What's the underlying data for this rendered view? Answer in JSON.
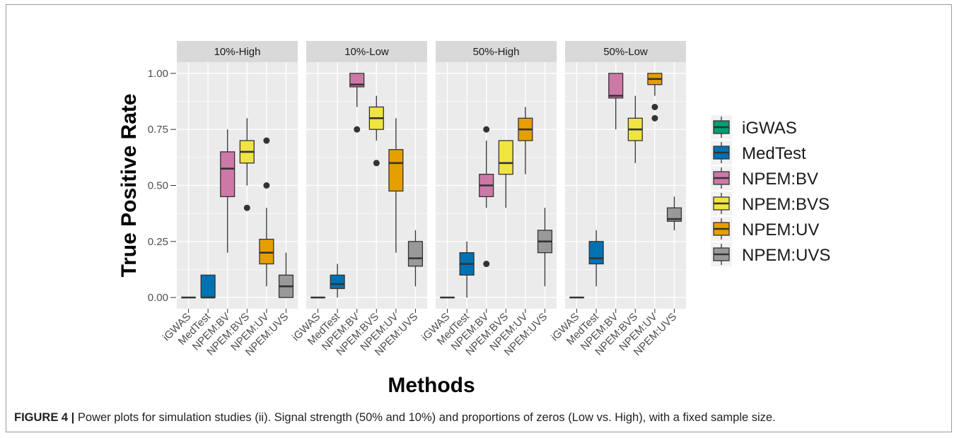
{
  "caption": {
    "label": "FIGURE 4 |",
    "text": "Power plots for simulation studies (ii). Signal strength (50% and 10%) and proportions of zeros (Low vs. High), with a fixed sample size."
  },
  "colors": {
    "panel_bg": "#ebebeb",
    "strip_bg": "#d9d9d9",
    "grid": "#ffffff",
    "box_line": "#333333",
    "iGWAS": "#009E73",
    "MedTest": "#0072B2",
    "NPEM:BV": "#CC79A7",
    "NPEM:BVS": "#F0E442",
    "NPEM:UV": "#E69F00",
    "NPEM:UVS": "#999999"
  },
  "chart_data": {
    "type": "boxplot",
    "xlabel": "Methods",
    "ylabel": "True Positive Rate",
    "ylim": [
      -0.05,
      1.05
    ],
    "yticks": [
      0.0,
      0.25,
      0.5,
      0.75,
      1.0
    ],
    "ytick_labels": [
      "0.00",
      "0.25",
      "0.50",
      "0.75",
      "1.00"
    ],
    "categories": [
      "iGWAS",
      "MedTest",
      "NPEM:BV",
      "NPEM:BVS",
      "NPEM:UV",
      "NPEM:UVS"
    ],
    "legend": {
      "position": "right",
      "entries": [
        "iGWAS",
        "MedTest",
        "NPEM:BV",
        "NPEM:BVS",
        "NPEM:UV",
        "NPEM:UVS"
      ]
    },
    "panels": [
      {
        "title": "10%-High",
        "boxes": [
          {
            "method": "iGWAS",
            "min": 0,
            "q1": 0,
            "median": 0,
            "q3": 0,
            "max": 0,
            "outliers": []
          },
          {
            "method": "MedTest",
            "min": 0,
            "q1": 0,
            "median": 0,
            "q3": 0.1,
            "max": 0.1,
            "outliers": []
          },
          {
            "method": "NPEM:BV",
            "min": 0.2,
            "q1": 0.45,
            "median": 0.575,
            "q3": 0.65,
            "max": 0.75,
            "outliers": []
          },
          {
            "method": "NPEM:BVS",
            "min": 0.5,
            "q1": 0.6,
            "median": 0.65,
            "q3": 0.7,
            "max": 0.8,
            "outliers": [
              0.4
            ]
          },
          {
            "method": "NPEM:UV",
            "min": 0.05,
            "q1": 0.15,
            "median": 0.2,
            "q3": 0.26,
            "max": 0.4,
            "outliers": [
              0.5,
              0.7
            ]
          },
          {
            "method": "NPEM:UVS",
            "min": 0,
            "q1": 0,
            "median": 0.05,
            "q3": 0.1,
            "max": 0.2,
            "outliers": []
          }
        ]
      },
      {
        "title": "10%-Low",
        "boxes": [
          {
            "method": "iGWAS",
            "min": 0,
            "q1": 0,
            "median": 0,
            "q3": 0,
            "max": 0,
            "outliers": []
          },
          {
            "method": "MedTest",
            "min": 0,
            "q1": 0.04,
            "median": 0.06,
            "q3": 0.1,
            "max": 0.15,
            "outliers": []
          },
          {
            "method": "NPEM:BV",
            "min": 0.85,
            "q1": 0.94,
            "median": 0.95,
            "q3": 1.0,
            "max": 1.0,
            "outliers": [
              0.75
            ]
          },
          {
            "method": "NPEM:BVS",
            "min": 0.7,
            "q1": 0.75,
            "median": 0.8,
            "q3": 0.85,
            "max": 0.9,
            "outliers": [
              0.6
            ]
          },
          {
            "method": "NPEM:UV",
            "min": 0.2,
            "q1": 0.475,
            "median": 0.6,
            "q3": 0.66,
            "max": 0.8,
            "outliers": []
          },
          {
            "method": "NPEM:UVS",
            "min": 0.05,
            "q1": 0.14,
            "median": 0.175,
            "q3": 0.25,
            "max": 0.3,
            "outliers": []
          }
        ]
      },
      {
        "title": "50%-High",
        "boxes": [
          {
            "method": "iGWAS",
            "min": 0,
            "q1": 0,
            "median": 0,
            "q3": 0,
            "max": 0,
            "outliers": []
          },
          {
            "method": "MedTest",
            "min": 0,
            "q1": 0.1,
            "median": 0.15,
            "q3": 0.2,
            "max": 0.25,
            "outliers": []
          },
          {
            "method": "NPEM:BV",
            "min": 0.4,
            "q1": 0.45,
            "median": 0.5,
            "q3": 0.55,
            "max": 0.7,
            "outliers": [
              0.15,
              0.75
            ]
          },
          {
            "method": "NPEM:BVS",
            "min": 0.4,
            "q1": 0.55,
            "median": 0.6,
            "q3": 0.7,
            "max": 0.7,
            "outliers": []
          },
          {
            "method": "NPEM:UV",
            "min": 0.55,
            "q1": 0.7,
            "median": 0.75,
            "q3": 0.8,
            "max": 0.85,
            "outliers": []
          },
          {
            "method": "NPEM:UVS",
            "min": 0.05,
            "q1": 0.2,
            "median": 0.25,
            "q3": 0.3,
            "max": 0.4,
            "outliers": []
          }
        ]
      },
      {
        "title": "50%-Low",
        "boxes": [
          {
            "method": "iGWAS",
            "min": 0,
            "q1": 0,
            "median": 0,
            "q3": 0,
            "max": 0,
            "outliers": []
          },
          {
            "method": "MedTest",
            "min": 0.05,
            "q1": 0.15,
            "median": 0.175,
            "q3": 0.25,
            "max": 0.3,
            "outliers": []
          },
          {
            "method": "NPEM:BV",
            "min": 0.75,
            "q1": 0.89,
            "median": 0.9,
            "q3": 1.0,
            "max": 1.0,
            "outliers": []
          },
          {
            "method": "NPEM:BVS",
            "min": 0.6,
            "q1": 0.7,
            "median": 0.75,
            "q3": 0.8,
            "max": 0.9,
            "outliers": []
          },
          {
            "method": "NPEM:UV",
            "min": 0.9,
            "q1": 0.95,
            "median": 0.975,
            "q3": 1.0,
            "max": 1.0,
            "outliers": [
              0.8,
              0.85
            ]
          },
          {
            "method": "NPEM:UVS",
            "min": 0.3,
            "q1": 0.34,
            "median": 0.35,
            "q3": 0.4,
            "max": 0.45,
            "outliers": []
          }
        ]
      }
    ]
  }
}
